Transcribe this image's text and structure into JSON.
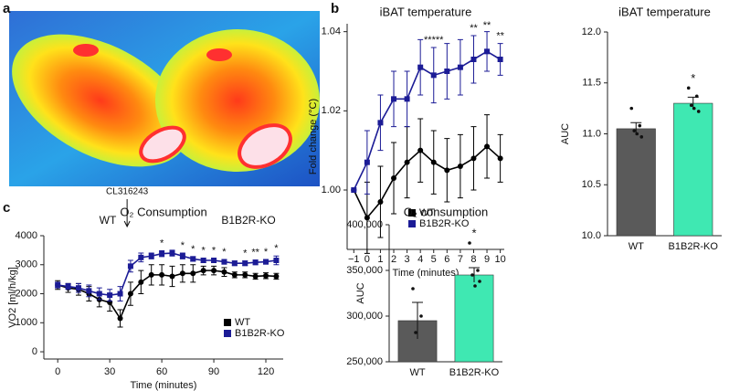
{
  "panel_labels": [
    "a",
    "b",
    "c"
  ],
  "image": {
    "labels": [
      "WT",
      "B1B2R-KO"
    ]
  },
  "chart_data": [
    {
      "type": "line",
      "title": "iBAT temperature",
      "x_label": "Time (minutes)",
      "y_label": "Fold change (°C)",
      "x": [
        -1,
        0,
        1,
        2,
        3,
        4,
        5,
        6,
        7,
        8,
        9,
        10
      ],
      "series": [
        {
          "name": "WT",
          "color": "#000000",
          "marker": "circle",
          "values": [
            1.0,
            0.993,
            0.997,
            1.003,
            1.007,
            1.01,
            1.007,
            1.005,
            1.006,
            1.008,
            1.011,
            1.008
          ],
          "errors": [
            0,
            0.009,
            0.009,
            0.009,
            0.009,
            0.008,
            0.008,
            0.008,
            0.008,
            0.008,
            0.008,
            0.006
          ]
        },
        {
          "name": "B1B2R-KO",
          "color": "#1c1c96",
          "marker": "square",
          "values": [
            1.0,
            1.007,
            1.017,
            1.023,
            1.023,
            1.031,
            1.029,
            1.03,
            1.031,
            1.033,
            1.035,
            1.033
          ],
          "errors": [
            0,
            0.008,
            0.007,
            0.007,
            0.007,
            0.007,
            0.007,
            0.007,
            0.007,
            0.006,
            0.005,
            0.004
          ]
        }
      ],
      "xlim": [
        -1.5,
        10.3
      ],
      "ylim": [
        0.985,
        1.042
      ],
      "xticks": [
        {
          "value": -1,
          "label": "−1"
        },
        0,
        1,
        2,
        3,
        4,
        5,
        6,
        7,
        8,
        9,
        10
      ],
      "yticks": [
        {
          "value": 1.0,
          "label": "1.00"
        },
        {
          "value": 1.02,
          "label": "1.02"
        },
        {
          "value": 1.04,
          "label": "1.04"
        }
      ],
      "legend": "lower right",
      "annotations": [
        {
          "text": "*****",
          "x": 5
        },
        {
          "text": "**",
          "x": 8
        },
        {
          "text": "**",
          "x": 9
        },
        {
          "text": "**",
          "x": 10
        }
      ]
    },
    {
      "type": "bar",
      "title": "iBAT temperature",
      "y_label": "AUC",
      "categories": [
        "WT",
        "B1B2R-KO"
      ],
      "values": [
        11.05,
        11.3
      ],
      "errors": [
        0.06,
        0.06
      ],
      "colors": [
        "#5a5a5a",
        "#3fe8b2"
      ],
      "points": [
        [
          11.25,
          11.08,
          11.03,
          10.97,
          11.0
        ],
        [
          11.45,
          11.37,
          11.28,
          11.22,
          11.25
        ]
      ],
      "ylim": [
        10,
        12
      ],
      "yticks": [
        {
          "value": 10,
          "label": "10.0"
        },
        {
          "value": 10.5,
          "label": "10.5"
        },
        {
          "value": 11,
          "label": "11.0"
        },
        {
          "value": 11.5,
          "label": "11.5"
        },
        {
          "value": 12,
          "label": "12.0"
        }
      ],
      "annotations": [
        {
          "text": "*",
          "category": "B1B2R-KO"
        }
      ]
    },
    {
      "type": "line",
      "title": "O₂ Consumption",
      "x_label": "Time (minutes)",
      "y_label": "VO2 [ml/h/kg]",
      "x": [
        0,
        6,
        12,
        18,
        24,
        30,
        36,
        42,
        48,
        54,
        60,
        66,
        72,
        78,
        84,
        90,
        96,
        102,
        108,
        114,
        120,
        126
      ],
      "series": [
        {
          "name": "WT",
          "color": "#000000",
          "marker": "circle",
          "values": [
            2300,
            2200,
            2150,
            2000,
            1800,
            1700,
            1150,
            2000,
            2400,
            2650,
            2650,
            2600,
            2700,
            2700,
            2800,
            2800,
            2750,
            2650,
            2650,
            2600,
            2620,
            2600
          ],
          "errors": [
            150,
            150,
            200,
            250,
            250,
            300,
            300,
            400,
            400,
            350,
            350,
            350,
            300,
            300,
            150,
            150,
            150,
            100,
            100,
            100,
            100,
            100
          ]
        },
        {
          "name": "B1B2R-KO",
          "color": "#1c1c96",
          "marker": "square",
          "values": [
            2300,
            2250,
            2200,
            2100,
            2000,
            1950,
            2000,
            2950,
            3250,
            3300,
            3380,
            3400,
            3300,
            3200,
            3150,
            3150,
            3100,
            3050,
            3050,
            3080,
            3100,
            3150
          ],
          "errors": [
            100,
            100,
            150,
            200,
            200,
            200,
            250,
            200,
            150,
            100,
            100,
            100,
            100,
            80,
            80,
            80,
            80,
            80,
            80,
            80,
            80,
            150
          ]
        }
      ],
      "xlim": [
        -8,
        130
      ],
      "ylim": [
        -250,
        4000
      ],
      "xticks": [
        0,
        30,
        60,
        90,
        120
      ],
      "yticks": [
        0,
        1000,
        2000,
        3000,
        4000
      ],
      "legend": "lower right",
      "annotations": [
        {
          "text": "CL316243",
          "x": 40,
          "arrow": true
        },
        {
          "text": "*",
          "x": 60
        },
        {
          "text": "*",
          "x": 72
        },
        {
          "text": "*",
          "x": 78
        },
        {
          "text": "*",
          "x": 84
        },
        {
          "text": "*",
          "x": 90
        },
        {
          "text": "*",
          "x": 96
        },
        {
          "text": "*",
          "x": 108
        },
        {
          "text": "**",
          "x": 114
        },
        {
          "text": "*",
          "x": 120
        },
        {
          "text": "*",
          "x": 126
        }
      ]
    },
    {
      "type": "bar",
      "title": "O₂ consumption",
      "y_label": "AUC",
      "categories": [
        "WT",
        "B1B2R-KO"
      ],
      "values": [
        295000,
        345000
      ],
      "errors": [
        20000,
        8000
      ],
      "colors": [
        "#5a5a5a",
        "#3fe8b2"
      ],
      "points": [
        [
          330000,
          300000,
          282000
        ],
        [
          380000,
          350000,
          345000,
          338000,
          333000
        ]
      ],
      "ylim": [
        250000,
        400000
      ],
      "yticks": [
        {
          "value": 250000,
          "label": "250,000"
        },
        {
          "value": 300000,
          "label": "300,000"
        },
        {
          "value": 350000,
          "label": "350,000"
        },
        {
          "value": 400000,
          "label": "400,000"
        }
      ],
      "annotations": [
        {
          "text": "*",
          "category": "B1B2R-KO"
        }
      ]
    }
  ]
}
